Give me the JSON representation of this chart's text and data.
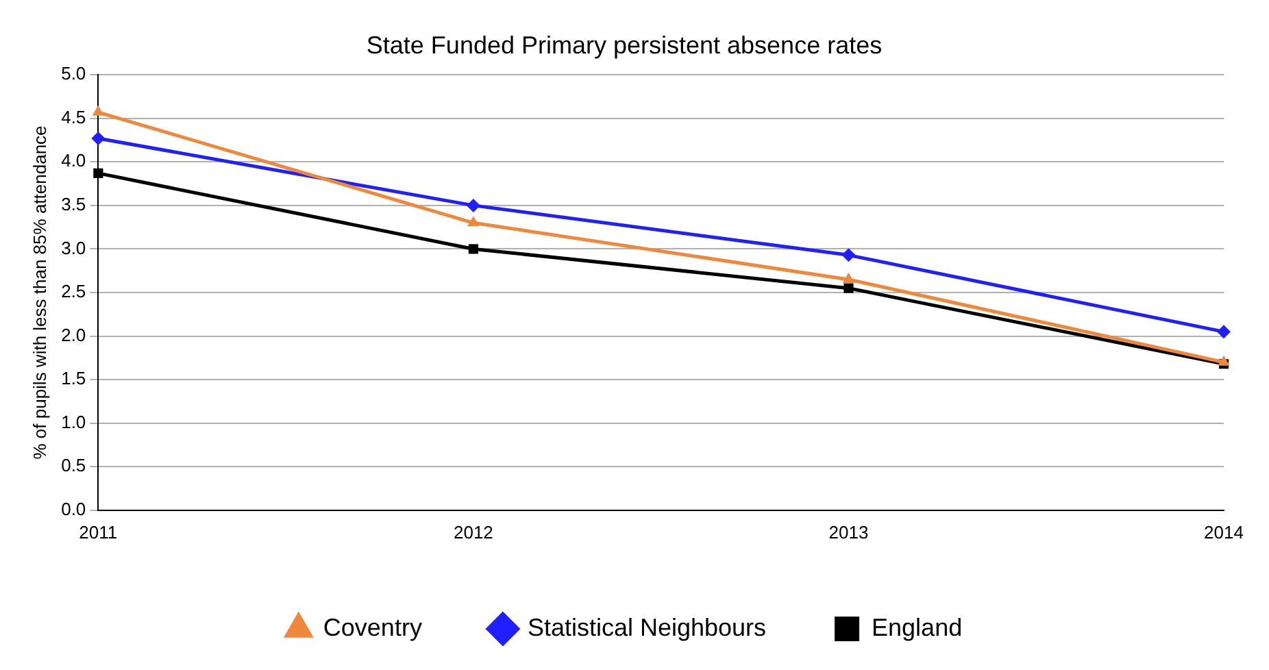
{
  "chart_data": {
    "type": "line",
    "title": "State Funded Primary persistent absence rates",
    "ylabel": "% of pupils with less than 85% attendance",
    "categories": [
      "2011",
      "2012",
      "2013",
      "2014"
    ],
    "series": [
      {
        "name": "Coventry",
        "color": "#f0883c",
        "marker": "triangle",
        "values": [
          4.57,
          3.3,
          2.65,
          1.7
        ]
      },
      {
        "name": "Statistical Neighbours",
        "color": "#1f1fff",
        "marker": "diamond",
        "values": [
          4.27,
          3.5,
          2.93,
          2.05
        ]
      },
      {
        "name": "England",
        "color": "#000000",
        "marker": "square",
        "values": [
          3.87,
          3.0,
          2.55,
          1.68
        ]
      }
    ],
    "ylim": [
      0,
      5
    ],
    "yticks": [
      {
        "value": 0,
        "label": "0.0"
      },
      {
        "value": 0.5,
        "label": "0.5"
      },
      {
        "value": 1,
        "label": "1.0"
      },
      {
        "value": 1.5,
        "label": "1.5"
      },
      {
        "value": 2,
        "label": "2.0"
      },
      {
        "value": 2.5,
        "label": "2.5"
      },
      {
        "value": 3,
        "label": "3.0"
      },
      {
        "value": 3.5,
        "label": "3.5"
      },
      {
        "value": 4,
        "label": "4.0"
      },
      {
        "value": 4.5,
        "label": "4.5"
      },
      {
        "value": 5,
        "label": "5.0"
      }
    ],
    "grid": "y",
    "legend": "bottom",
    "line_style": "solid"
  }
}
